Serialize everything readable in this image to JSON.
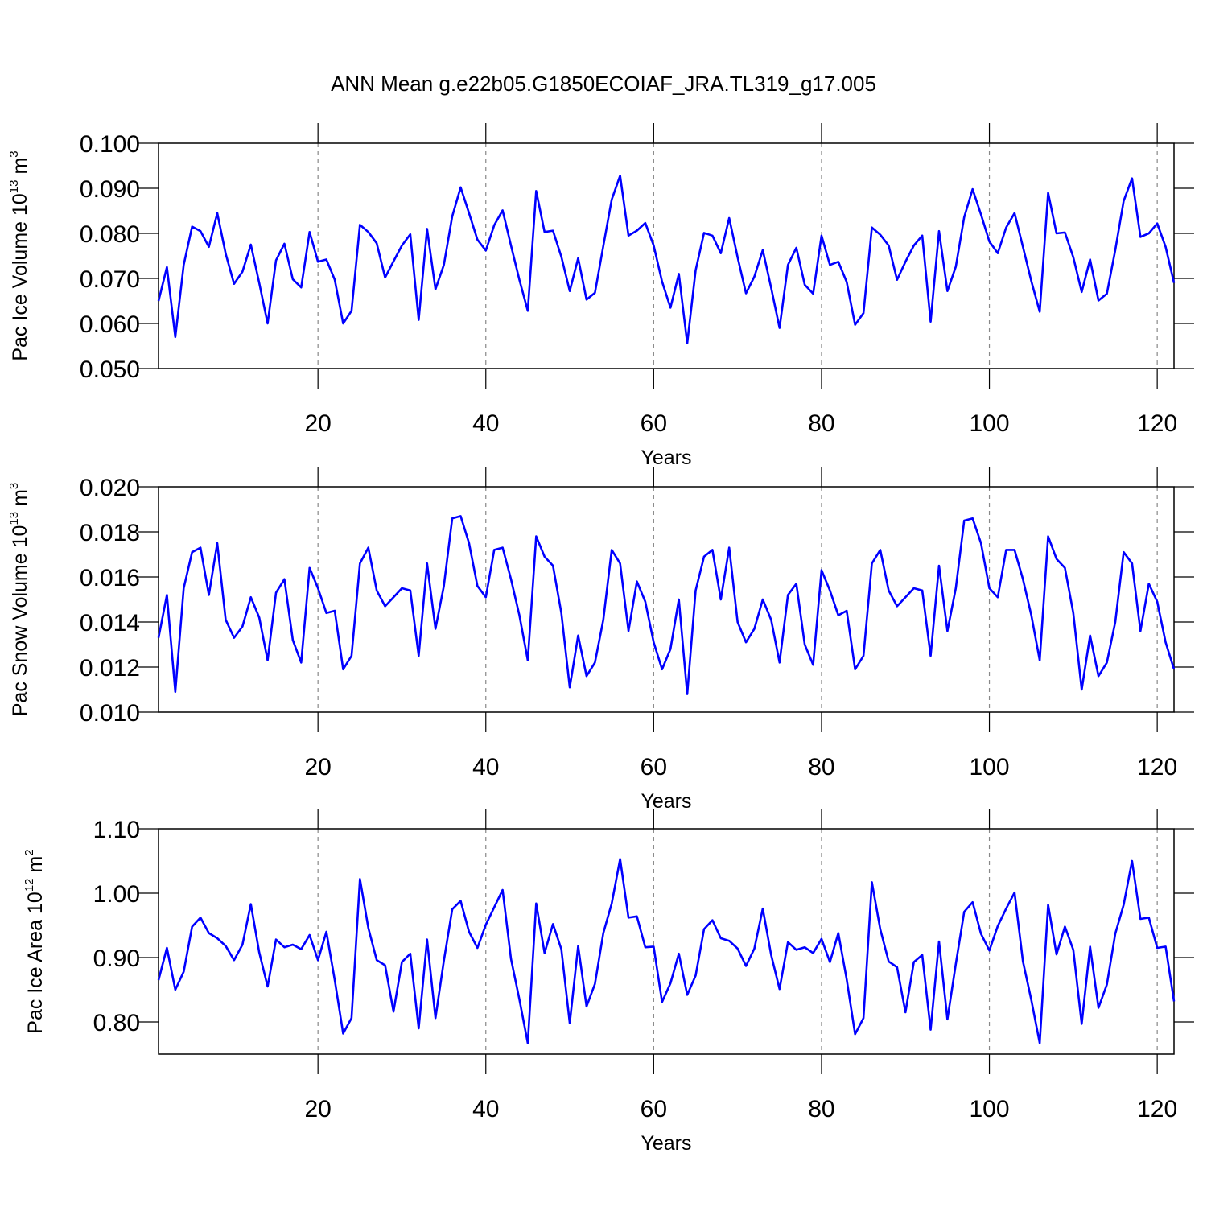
{
  "chart_data": [
    {
      "type": "line",
      "title": "ANN Mean g.e22b05.G1850ECOIAF_JRA.TL319_g17.005",
      "xlabel": "Years",
      "ylabel": {
        "text": "Pac Ice Volume 10",
        "exponent": "13",
        "unit": "m",
        "unit_exponent": "3"
      },
      "color": "#0000ff",
      "xgrid": true,
      "xlim": [
        1,
        122
      ],
      "xticks": [
        20,
        40,
        60,
        80,
        100,
        120
      ],
      "ylim": [
        0.05,
        0.1
      ],
      "yticks": [
        {
          "value": 0.1,
          "label": "0.100"
        },
        {
          "value": 0.09,
          "label": "0.090"
        },
        {
          "value": 0.08,
          "label": "0.080"
        },
        {
          "value": 0.07,
          "label": "0.070"
        },
        {
          "value": 0.06,
          "label": "0.060"
        },
        {
          "value": 0.05,
          "label": "0.050"
        }
      ],
      "x": [
        1,
        2,
        3,
        4,
        5,
        6,
        7,
        8,
        9,
        10,
        11,
        12,
        13,
        14,
        15,
        16,
        17,
        18,
        19,
        20,
        21,
        22,
        23,
        24,
        25,
        26,
        27,
        28,
        29,
        30,
        31,
        32,
        33,
        34,
        35,
        36,
        37,
        38,
        39,
        40,
        41,
        42,
        43,
        44,
        45,
        46,
        47,
        48,
        49,
        50,
        51,
        52,
        53,
        54,
        55,
        56,
        57,
        58,
        59,
        60,
        61,
        62,
        63,
        64,
        65,
        66,
        67,
        68,
        69,
        70,
        71,
        72,
        73,
        74,
        75,
        76,
        77,
        78,
        79,
        80,
        81,
        82,
        83,
        84,
        85,
        86,
        87,
        88,
        89,
        90,
        91,
        92,
        93,
        94,
        95,
        96,
        97,
        98,
        99,
        100,
        101,
        102,
        103,
        104,
        105,
        106,
        107,
        108,
        109,
        110,
        111,
        112,
        113,
        114,
        115,
        116,
        117,
        118,
        119,
        120,
        121,
        122
      ],
      "values": [
        0.065,
        0.0725,
        0.057,
        0.073,
        0.0815,
        0.0805,
        0.077,
        0.0845,
        0.0755,
        0.0688,
        0.0715,
        0.0775,
        0.069,
        0.06,
        0.074,
        0.0777,
        0.0698,
        0.068,
        0.0803,
        0.0737,
        0.0742,
        0.0697,
        0.06,
        0.0628,
        0.0819,
        0.0803,
        0.0778,
        0.0702,
        0.0738,
        0.0773,
        0.0798,
        0.0608,
        0.081,
        0.0676,
        0.073,
        0.0838,
        0.0902,
        0.0845,
        0.0786,
        0.0762,
        0.0818,
        0.0851,
        0.0773,
        0.0697,
        0.0628,
        0.0894,
        0.0803,
        0.0806,
        0.0748,
        0.0672,
        0.0745,
        0.0653,
        0.0668,
        0.0772,
        0.0875,
        0.0928,
        0.0795,
        0.0806,
        0.0823,
        0.0773,
        0.0693,
        0.0635,
        0.071,
        0.0556,
        0.0718,
        0.0801,
        0.0795,
        0.0756,
        0.0834,
        0.0747,
        0.0667,
        0.0704,
        0.0763,
        0.0679,
        0.059,
        0.073,
        0.0768,
        0.0686,
        0.0666,
        0.0795,
        0.073,
        0.0737,
        0.0692,
        0.0597,
        0.0623,
        0.0813,
        0.0797,
        0.0773,
        0.0697,
        0.0737,
        0.0773,
        0.0795,
        0.0604,
        0.0805,
        0.0672,
        0.0726,
        0.0836,
        0.0898,
        0.0842,
        0.0782,
        0.0756,
        0.0813,
        0.0845,
        0.077,
        0.0694,
        0.0626,
        0.089,
        0.08,
        0.0802,
        0.0747,
        0.067,
        0.0742,
        0.0651,
        0.0666,
        0.0763,
        0.0872,
        0.0922,
        0.0792,
        0.08,
        0.0822,
        0.077,
        0.069
      ]
    },
    {
      "type": "line",
      "xlabel": "Years",
      "ylabel": {
        "text": "Pac Snow Volume 10",
        "exponent": "13",
        "unit": "m",
        "unit_exponent": "3"
      },
      "color": "#0000ff",
      "xgrid": true,
      "xlim": [
        1,
        122
      ],
      "xticks": [
        20,
        40,
        60,
        80,
        100,
        120
      ],
      "ylim": [
        0.01,
        0.02
      ],
      "yticks": [
        {
          "value": 0.02,
          "label": "0.020"
        },
        {
          "value": 0.018,
          "label": "0.018"
        },
        {
          "value": 0.016,
          "label": "0.016"
        },
        {
          "value": 0.014,
          "label": "0.014"
        },
        {
          "value": 0.012,
          "label": "0.012"
        },
        {
          "value": 0.01,
          "label": "0.010"
        }
      ],
      "x": [
        1,
        2,
        3,
        4,
        5,
        6,
        7,
        8,
        9,
        10,
        11,
        12,
        13,
        14,
        15,
        16,
        17,
        18,
        19,
        20,
        21,
        22,
        23,
        24,
        25,
        26,
        27,
        28,
        29,
        30,
        31,
        32,
        33,
        34,
        35,
        36,
        37,
        38,
        39,
        40,
        41,
        42,
        43,
        44,
        45,
        46,
        47,
        48,
        49,
        50,
        51,
        52,
        53,
        54,
        55,
        56,
        57,
        58,
        59,
        60,
        61,
        62,
        63,
        64,
        65,
        66,
        67,
        68,
        69,
        70,
        71,
        72,
        73,
        74,
        75,
        76,
        77,
        78,
        79,
        80,
        81,
        82,
        83,
        84,
        85,
        86,
        87,
        88,
        89,
        90,
        91,
        92,
        93,
        94,
        95,
        96,
        97,
        98,
        99,
        100,
        101,
        102,
        103,
        104,
        105,
        106,
        107,
        108,
        109,
        110,
        111,
        112,
        113,
        114,
        115,
        116,
        117,
        118,
        119,
        120,
        121,
        122
      ],
      "values": [
        0.0133,
        0.0152,
        0.0109,
        0.0155,
        0.0171,
        0.0173,
        0.0152,
        0.0175,
        0.0141,
        0.0133,
        0.0138,
        0.0151,
        0.0142,
        0.0123,
        0.0153,
        0.0159,
        0.0132,
        0.0122,
        0.0164,
        0.0155,
        0.0144,
        0.0145,
        0.0119,
        0.0125,
        0.0166,
        0.0173,
        0.0154,
        0.0147,
        0.0151,
        0.0155,
        0.0154,
        0.0125,
        0.0166,
        0.0137,
        0.0156,
        0.0186,
        0.0187,
        0.0175,
        0.0156,
        0.0151,
        0.0172,
        0.0173,
        0.0159,
        0.0143,
        0.0123,
        0.0178,
        0.0169,
        0.0165,
        0.0144,
        0.0111,
        0.0134,
        0.0116,
        0.0122,
        0.0141,
        0.0172,
        0.0166,
        0.0136,
        0.0158,
        0.0149,
        0.0131,
        0.0119,
        0.0128,
        0.015,
        0.0108,
        0.0154,
        0.0169,
        0.0172,
        0.015,
        0.0173,
        0.014,
        0.0131,
        0.0137,
        0.015,
        0.0141,
        0.0122,
        0.0152,
        0.0157,
        0.013,
        0.0121,
        0.0163,
        0.0154,
        0.0143,
        0.0145,
        0.0119,
        0.0125,
        0.0166,
        0.0172,
        0.0154,
        0.0147,
        0.0151,
        0.0155,
        0.0154,
        0.0125,
        0.0165,
        0.0136,
        0.0155,
        0.0185,
        0.0186,
        0.0175,
        0.0155,
        0.0151,
        0.0172,
        0.0172,
        0.0159,
        0.0143,
        0.0123,
        0.0178,
        0.0168,
        0.0164,
        0.0144,
        0.011,
        0.0134,
        0.0116,
        0.0122,
        0.014,
        0.0171,
        0.0166,
        0.0136,
        0.0157,
        0.0149,
        0.0131,
        0.0119
      ]
    },
    {
      "type": "line",
      "xlabel": "Years",
      "ylabel": {
        "text": "Pac Ice Area 10",
        "exponent": "12",
        "unit": "m",
        "unit_exponent": "2"
      },
      "color": "#0000ff",
      "xgrid": true,
      "xlim": [
        1,
        122
      ],
      "xticks": [
        20,
        40,
        60,
        80,
        100,
        120
      ],
      "ylim": [
        0.75,
        1.1
      ],
      "yticks": [
        {
          "value": 1.1,
          "label": "1.10"
        },
        {
          "value": 1.0,
          "label": "1.00"
        },
        {
          "value": 0.9,
          "label": "0.90"
        },
        {
          "value": 0.8,
          "label": "0.80"
        }
      ],
      "x": [
        1,
        2,
        3,
        4,
        5,
        6,
        7,
        8,
        9,
        10,
        11,
        12,
        13,
        14,
        15,
        16,
        17,
        18,
        19,
        20,
        21,
        22,
        23,
        24,
        25,
        26,
        27,
        28,
        29,
        30,
        31,
        32,
        33,
        34,
        35,
        36,
        37,
        38,
        39,
        40,
        41,
        42,
        43,
        44,
        45,
        46,
        47,
        48,
        49,
        50,
        51,
        52,
        53,
        54,
        55,
        56,
        57,
        58,
        59,
        60,
        61,
        62,
        63,
        64,
        65,
        66,
        67,
        68,
        69,
        70,
        71,
        72,
        73,
        74,
        75,
        76,
        77,
        78,
        79,
        80,
        81,
        82,
        83,
        84,
        85,
        86,
        87,
        88,
        89,
        90,
        91,
        92,
        93,
        94,
        95,
        96,
        97,
        98,
        99,
        100,
        101,
        102,
        103,
        104,
        105,
        106,
        107,
        108,
        109,
        110,
        111,
        112,
        113,
        114,
        115,
        116,
        117,
        118,
        119,
        120,
        121,
        122
      ],
      "values": [
        0.865,
        0.915,
        0.85,
        0.878,
        0.948,
        0.962,
        0.938,
        0.93,
        0.918,
        0.896,
        0.92,
        0.983,
        0.908,
        0.855,
        0.928,
        0.916,
        0.92,
        0.913,
        0.935,
        0.896,
        0.94,
        0.865,
        0.782,
        0.806,
        1.022,
        0.946,
        0.896,
        0.888,
        0.816,
        0.893,
        0.906,
        0.79,
        0.928,
        0.806,
        0.895,
        0.975,
        0.988,
        0.94,
        0.915,
        0.951,
        0.978,
        1.005,
        0.898,
        0.835,
        0.767,
        0.984,
        0.907,
        0.952,
        0.913,
        0.798,
        0.918,
        0.824,
        0.859,
        0.938,
        0.984,
        1.053,
        0.962,
        0.964,
        0.916,
        0.917,
        0.831,
        0.86,
        0.906,
        0.842,
        0.872,
        0.944,
        0.958,
        0.93,
        0.926,
        0.914,
        0.887,
        0.914,
        0.976,
        0.904,
        0.851,
        0.924,
        0.912,
        0.916,
        0.907,
        0.929,
        0.893,
        0.938,
        0.866,
        0.781,
        0.806,
        1.017,
        0.944,
        0.894,
        0.885,
        0.815,
        0.893,
        0.904,
        0.788,
        0.925,
        0.804,
        0.89,
        0.971,
        0.986,
        0.937,
        0.911,
        0.949,
        0.976,
        1.001,
        0.894,
        0.834,
        0.767,
        0.982,
        0.905,
        0.948,
        0.912,
        0.797,
        0.917,
        0.822,
        0.858,
        0.937,
        0.982,
        1.05,
        0.96,
        0.962,
        0.915,
        0.917,
        0.832
      ]
    }
  ]
}
